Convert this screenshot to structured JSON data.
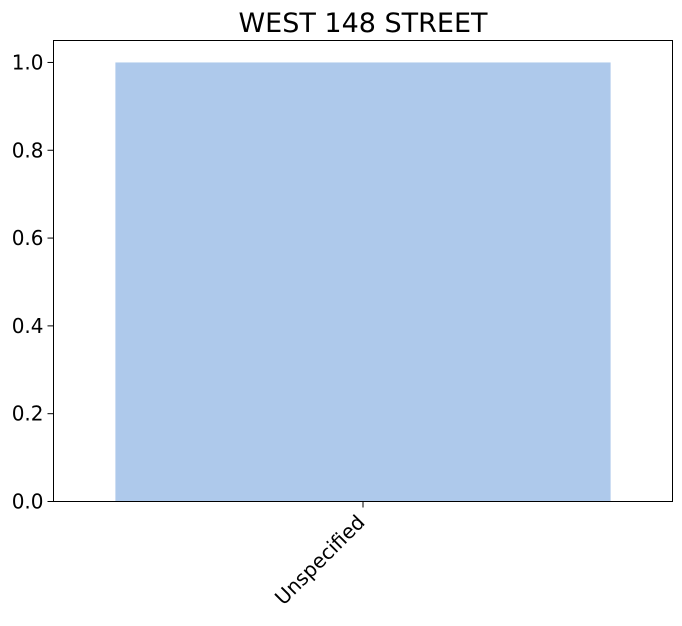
{
  "chart_data": {
    "type": "bar",
    "title": "WEST 148 STREET",
    "categories": [
      "Unspecified"
    ],
    "values": [
      1.0
    ],
    "xlabel": "",
    "ylabel": "",
    "ylim": [
      0,
      1.05
    ],
    "yticks": [
      0.0,
      0.2,
      0.4,
      0.6,
      0.8,
      1.0
    ],
    "ytick_labels": [
      "0.0",
      "0.2",
      "0.4",
      "0.6",
      "0.8",
      "1.0"
    ],
    "bar_color": "#aec9eb",
    "grid": false,
    "legend": "none"
  }
}
